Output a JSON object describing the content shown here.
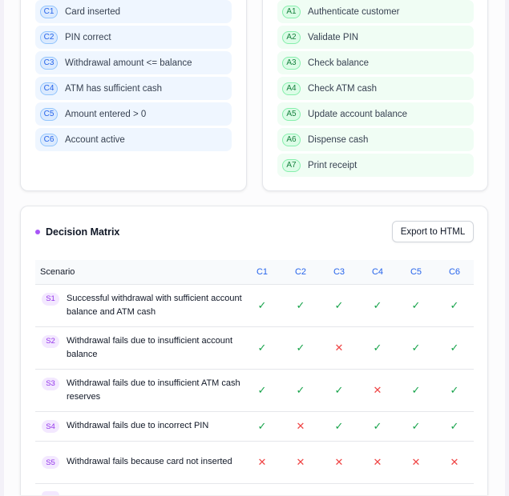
{
  "conditions": [
    {
      "id": "C1",
      "label": "Card inserted"
    },
    {
      "id": "C2",
      "label": "PIN correct"
    },
    {
      "id": "C3",
      "label": "Withdrawal amount <= balance"
    },
    {
      "id": "C4",
      "label": "ATM has sufficient cash"
    },
    {
      "id": "C5",
      "label": "Amount entered > 0"
    },
    {
      "id": "C6",
      "label": "Account active"
    }
  ],
  "actions": [
    {
      "id": "A1",
      "label": "Authenticate customer"
    },
    {
      "id": "A2",
      "label": "Validate PIN"
    },
    {
      "id": "A3",
      "label": "Check balance"
    },
    {
      "id": "A4",
      "label": "Check ATM cash"
    },
    {
      "id": "A5",
      "label": "Update account balance"
    },
    {
      "id": "A6",
      "label": "Dispense cash"
    },
    {
      "id": "A7",
      "label": "Print receipt"
    }
  ],
  "matrix": {
    "title": "Decision Matrix",
    "export_label": "Export to HTML",
    "header_scenario": "Scenario",
    "columns": [
      "C1",
      "C2",
      "C3",
      "C4",
      "C5",
      "C6"
    ],
    "rows": [
      {
        "id": "S1",
        "label": "Successful withdrawal with sufficient account balance and ATM cash",
        "values": [
          true,
          true,
          true,
          true,
          true,
          true
        ]
      },
      {
        "id": "S2",
        "label": "Withdrawal fails due to insufficient account balance",
        "values": [
          true,
          true,
          false,
          true,
          true,
          true
        ]
      },
      {
        "id": "S3",
        "label": "Withdrawal fails due to insufficient ATM cash reserves",
        "values": [
          true,
          true,
          true,
          false,
          true,
          true
        ]
      },
      {
        "id": "S4",
        "label": "Withdrawal fails due to incorrect PIN",
        "values": [
          true,
          false,
          true,
          true,
          true,
          true
        ]
      },
      {
        "id": "S5",
        "label": "Withdrawal fails because card not inserted",
        "values": [
          false,
          false,
          false,
          false,
          false,
          false
        ]
      }
    ],
    "symbols": {
      "true": "✓",
      "false": "✕"
    }
  },
  "colors": {
    "condition_accent": "#2563eb",
    "action_accent": "#15803d",
    "scenario_accent": "#9333ea",
    "yes": "#16a34a",
    "no": "#ef4444"
  }
}
